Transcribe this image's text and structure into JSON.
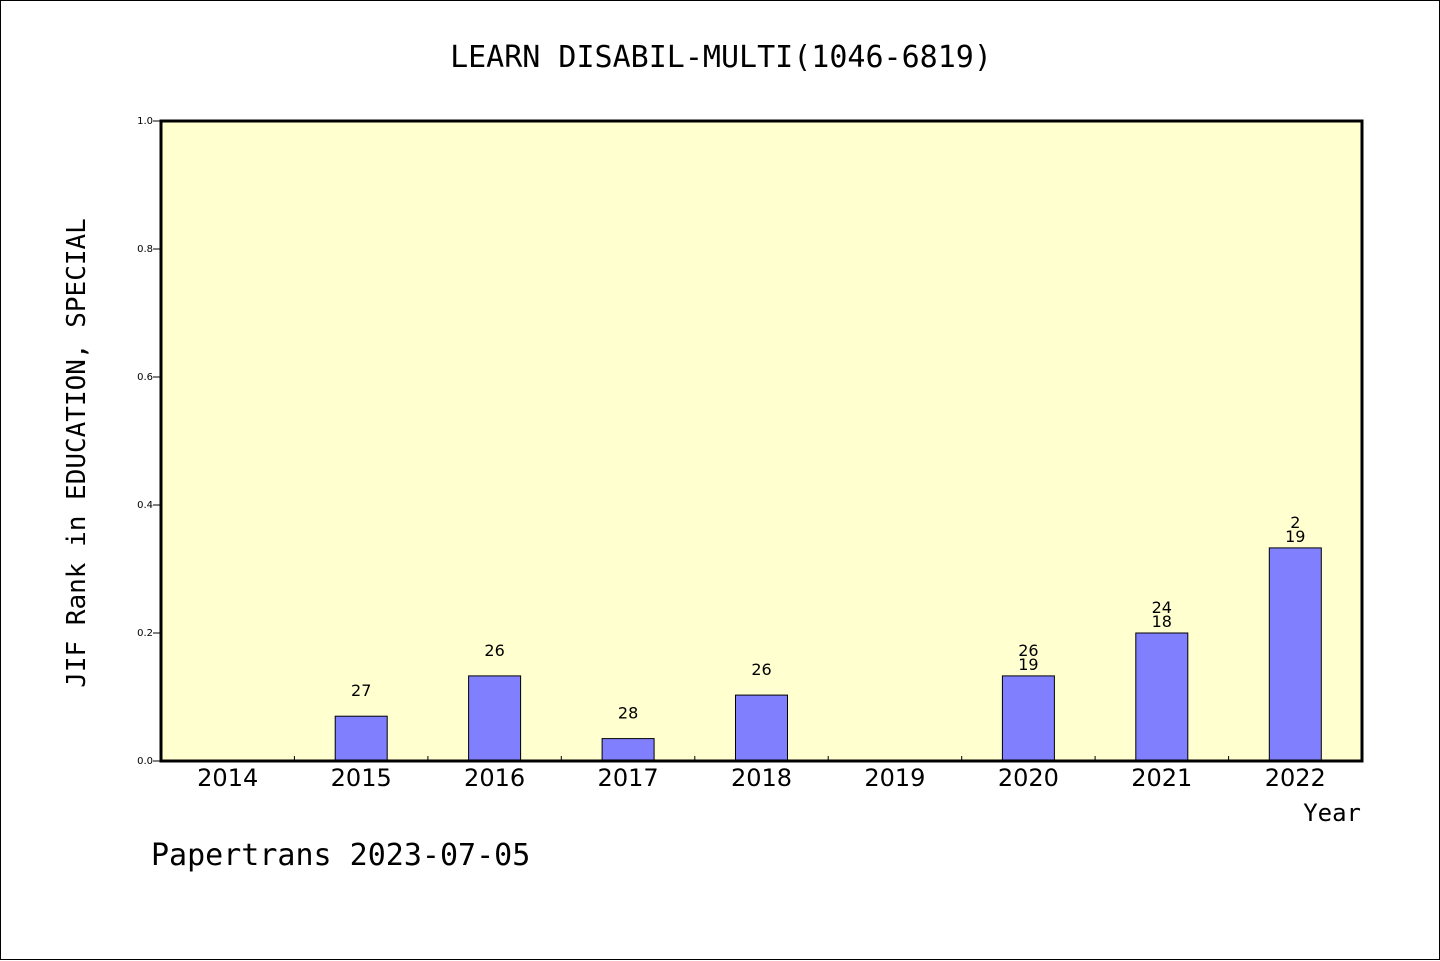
{
  "chart_data": {
    "type": "bar",
    "title": "LEARN DISABIL-MULTI(1046-6819)",
    "xlabel": "Year",
    "ylabel": "JIF Rank in EDUCATION, SPECIAL",
    "ylim": [
      0,
      1.0
    ],
    "yticks": [
      "0.0",
      "0.2",
      "0.4",
      "0.6",
      "0.8",
      "1.0"
    ],
    "categories": [
      "2014",
      "2015",
      "2016",
      "2017",
      "2018",
      "2019",
      "2020",
      "2021",
      "2022"
    ],
    "values": [
      0,
      0.07,
      0.133,
      0.035,
      0.103,
      0,
      0.133,
      0.2,
      0.333
    ],
    "bar_labels": [
      [],
      [
        "27"
      ],
      [
        "26"
      ],
      [
        "28"
      ],
      [
        "26"
      ],
      [],
      [
        "26",
        "19"
      ],
      [
        "24",
        "18"
      ],
      [
        "2",
        "19"
      ]
    ],
    "grid": false,
    "colors": {
      "bar_fill": "#8080ff",
      "plot_background": "#ffffd0",
      "axis": "#000000"
    }
  },
  "footer": {
    "text": "Papertrans 2023-07-05"
  }
}
